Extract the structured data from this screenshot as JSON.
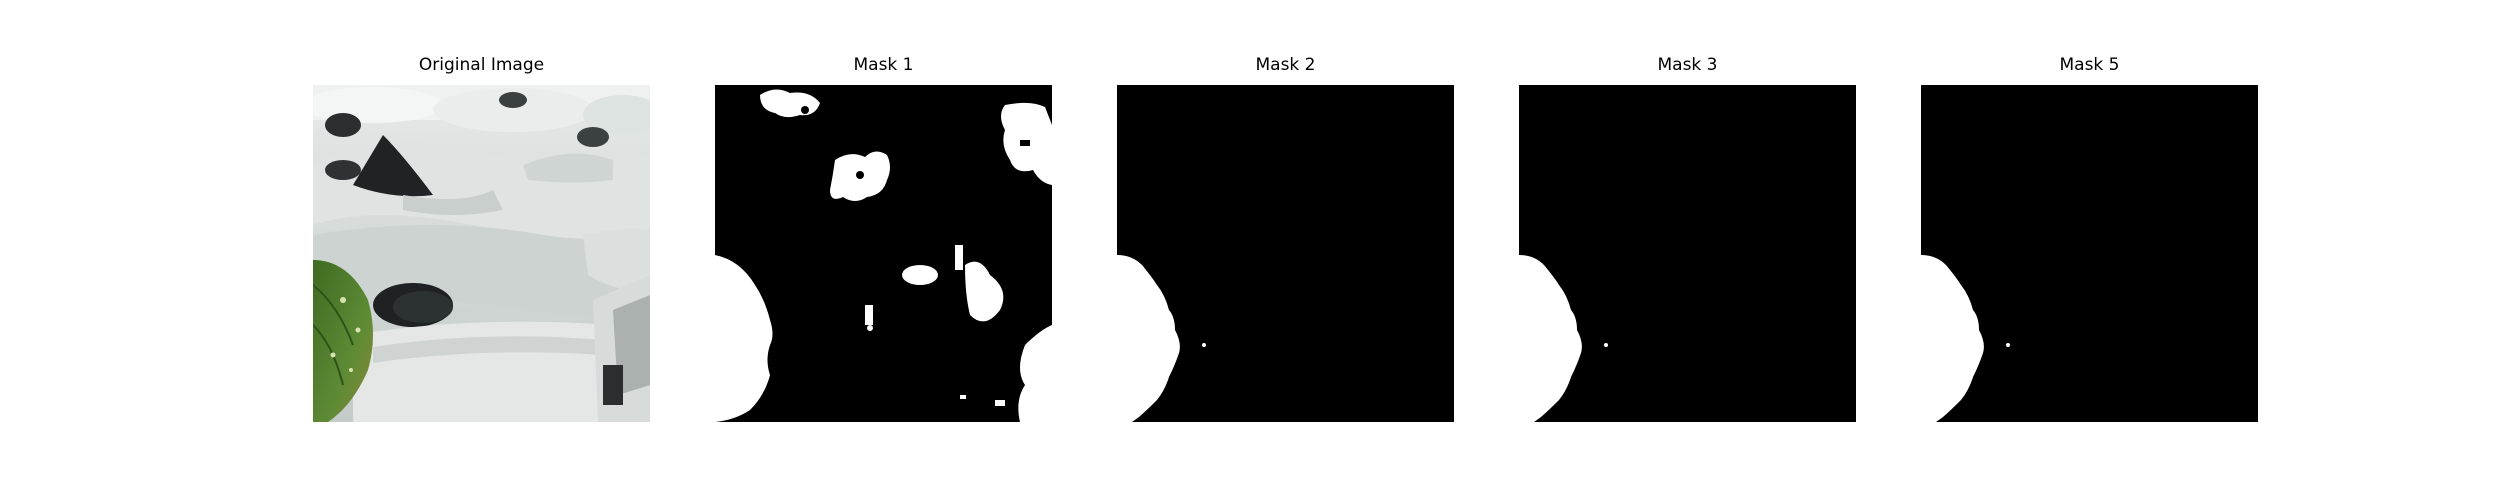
{
  "figure": {
    "panels": [
      {
        "title": "Original Image"
      },
      {
        "title": "Mask 1"
      },
      {
        "title": "Mask 2"
      },
      {
        "title": "Mask 3"
      },
      {
        "title": "Mask 5"
      }
    ]
  },
  "colors": {
    "background": "#ffffff",
    "mask_background": "#000000",
    "mask_foreground": "#ffffff",
    "photo_surface": "#d6dbd9",
    "leaf": "#4e7a2c"
  }
}
